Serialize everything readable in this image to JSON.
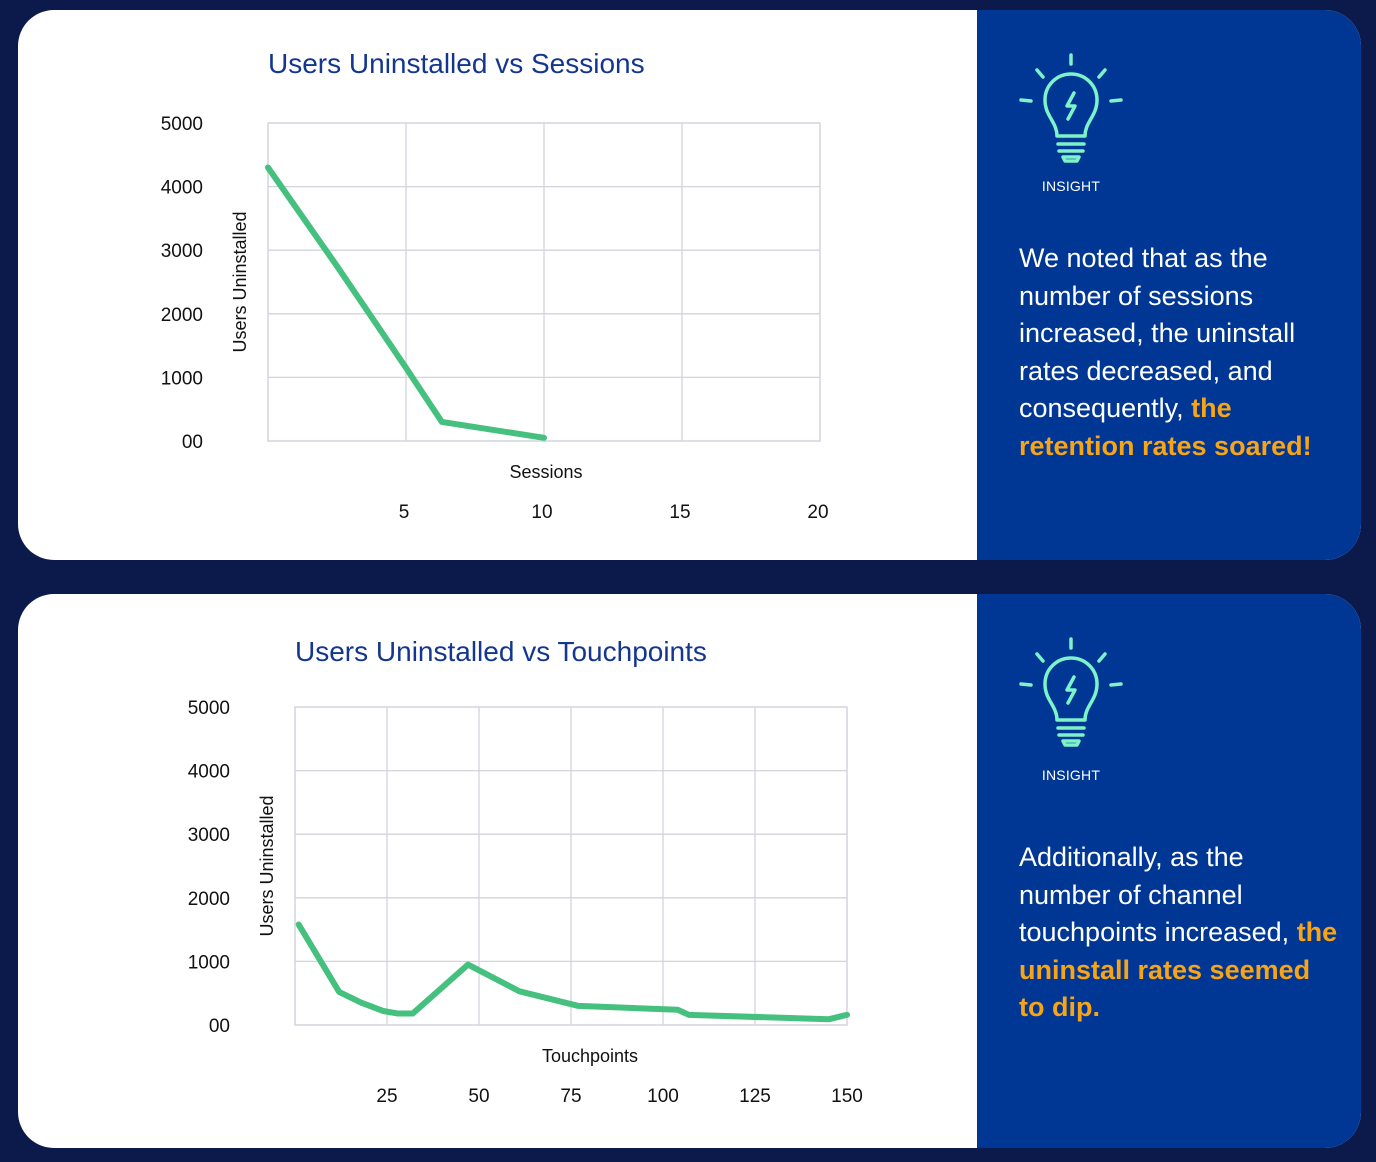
{
  "colors": {
    "background": "#0b1a4a",
    "card": "#ffffff",
    "insight_panel": "#003694",
    "series": "#45c07e",
    "title": "#13378f",
    "highlight": "#f7a416",
    "bulb": "#7cf3c9"
  },
  "chart_data": [
    {
      "type": "line",
      "title": "Users Uninstalled vs Sessions",
      "xlabel": "Sessions",
      "ylabel": "Users Uninstalled",
      "x": [
        0,
        2.5,
        5,
        6.3,
        10
      ],
      "y": [
        4300,
        2750,
        1150,
        300,
        50
      ],
      "xlim": [
        0,
        20
      ],
      "ylim": [
        0,
        5000
      ],
      "x_ticks": [
        5,
        10,
        15,
        20
      ],
      "y_ticks": [
        0,
        1000,
        2000,
        3000,
        4000,
        5000
      ],
      "y_tick_labels": [
        "00",
        "1000",
        "2000",
        "3000",
        "4000",
        "5000"
      ],
      "grid": true
    },
    {
      "type": "line",
      "title": "Users Uninstalled vs Touchpoints",
      "xlabel": "Touchpoints",
      "ylabel": "Users Uninstalled",
      "x": [
        1,
        12,
        18,
        24,
        28,
        32,
        47,
        61,
        77,
        104,
        107,
        145,
        150
      ],
      "y": [
        1580,
        520,
        350,
        220,
        180,
        180,
        950,
        530,
        300,
        240,
        160,
        90,
        160
      ],
      "xlim": [
        0,
        150
      ],
      "ylim": [
        0,
        5000
      ],
      "x_ticks": [
        25,
        50,
        75,
        100,
        125,
        150
      ],
      "y_ticks": [
        0,
        1000,
        2000,
        3000,
        4000,
        5000
      ],
      "y_tick_labels": [
        "00",
        "1000",
        "2000",
        "3000",
        "4000",
        "5000"
      ],
      "grid": true
    }
  ],
  "insights": [
    {
      "label": "INSIGHT",
      "icon": "lightbulb-icon",
      "text": "We noted that as the number of sessions increased, the uninstall rates decreased, and consequently, ",
      "highlight": "the retention rates soared!"
    },
    {
      "label": "INSIGHT",
      "icon": "lightbulb-icon",
      "text": "Additionally, as the number of channel touchpoints increased, ",
      "highlight": "the uninstall rates seemed to dip."
    }
  ]
}
